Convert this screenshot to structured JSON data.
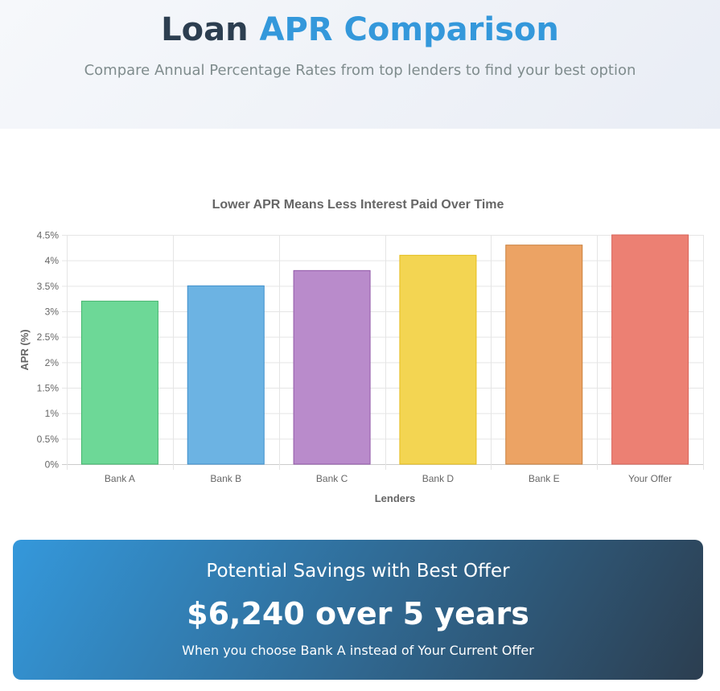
{
  "header": {
    "title_main": "Loan",
    "title_accent": "APR Comparison",
    "subtitle": "Compare Annual Percentage Rates from top lenders to find your best option"
  },
  "chart_data": {
    "type": "bar",
    "title": "Lower APR Means Less Interest Paid Over Time",
    "xlabel": "Lenders",
    "ylabel": "APR (%)",
    "categories": [
      "Bank A",
      "Bank B",
      "Bank C",
      "Bank D",
      "Bank E",
      "Your Offer"
    ],
    "values": [
      3.2,
      3.5,
      3.8,
      4.1,
      4.3,
      4.5
    ],
    "colors": [
      "#6dd897",
      "#6cb3e3",
      "#b98bcb",
      "#f3d552",
      "#eca364",
      "#ec8073"
    ],
    "border_colors": [
      "#43b56c",
      "#3f8fcc",
      "#9159a8",
      "#e5bd1c",
      "#c9813f",
      "#d9645a"
    ],
    "ylim": [
      0,
      4.5
    ],
    "yticks": [
      "0%",
      "0.5%",
      "1%",
      "1.5%",
      "2%",
      "2.5%",
      "3%",
      "3.5%",
      "4%",
      "4.5%"
    ],
    "grid": true,
    "legend": "none"
  },
  "savings": {
    "title": "Potential Savings with Best Offer",
    "amount": "$6,240 over 5 years",
    "note": "When you choose Bank A instead of Your Current Offer"
  }
}
